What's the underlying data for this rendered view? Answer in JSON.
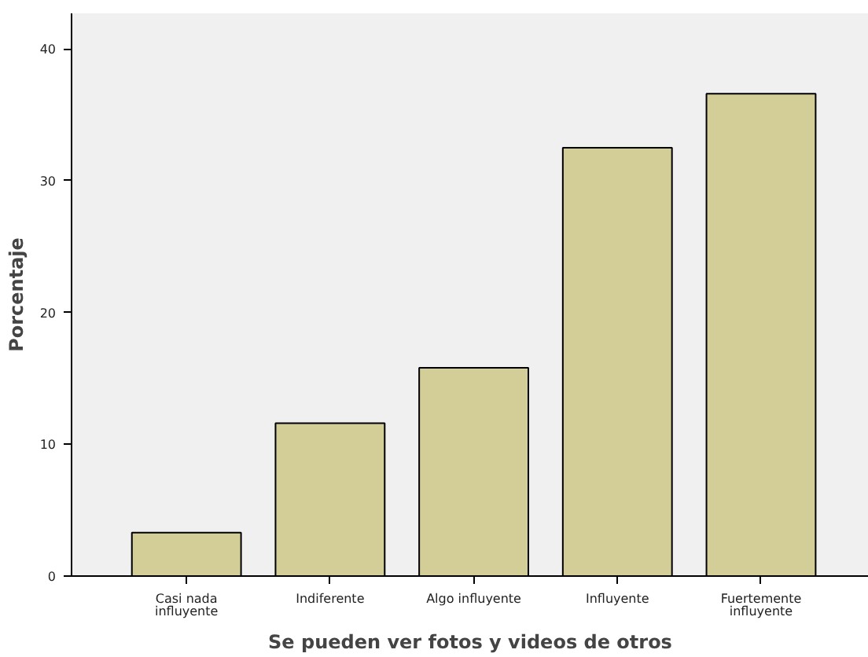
{
  "chart_data": {
    "type": "bar",
    "xlabel": "Se pueden ver fotos y videos de otros",
    "ylabel": "Porcentaje",
    "categories": [
      "Casi nada\ninfluyente",
      "Indiferente",
      "Algo influyente",
      "Influyente",
      "Fuertemente\ninfluyente"
    ],
    "values": [
      3.3,
      11.6,
      15.8,
      32.5,
      36.6
    ],
    "color": "#d3ce97",
    "ylim": [
      0,
      42.7
    ],
    "yticks": [
      0,
      10,
      20,
      30,
      40
    ],
    "grid": false
  }
}
